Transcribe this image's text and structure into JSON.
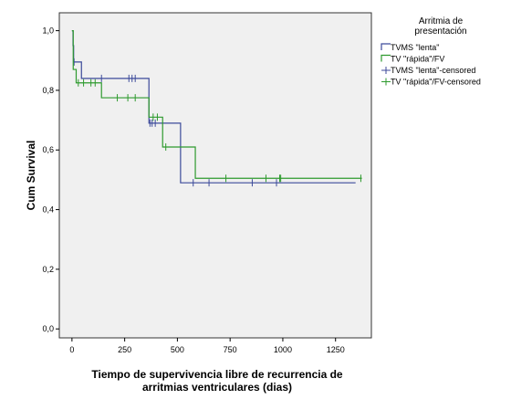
{
  "chart_data": {
    "type": "line",
    "subtype": "kaplan-meier",
    "title": "",
    "xlabel_lines": [
      "Tiempo de supervivencia libre de recurrencia de",
      "arritmias ventriculares (dias)"
    ],
    "ylabel": "Cum Survival",
    "xlim": [
      -60,
      1420
    ],
    "ylim": [
      -0.03,
      1.06
    ],
    "x_ticks": [
      0,
      250,
      500,
      750,
      1000,
      1250
    ],
    "x_tick_labels": [
      "0",
      "250",
      "500",
      "750",
      "1000",
      "1250"
    ],
    "y_ticks": [
      0.0,
      0.2,
      0.4,
      0.6,
      0.8,
      1.0
    ],
    "y_tick_labels": [
      "0,0",
      "0,2",
      "0,4",
      "0,6",
      "0,8",
      "1,0"
    ],
    "grid": false,
    "plot_background": "#f0f0f0",
    "legend_title_lines": [
      "Arritmia de",
      "presentación"
    ],
    "legend_position": "right",
    "series": [
      {
        "name": "TVMS \"lenta\"",
        "color": "#3c4a9a",
        "steps": [
          [
            0,
            1.0
          ],
          [
            5,
            0.95
          ],
          [
            8,
            0.895
          ],
          [
            45,
            0.84
          ],
          [
            365,
            0.69
          ],
          [
            515,
            0.49
          ],
          [
            1345,
            0.49
          ]
        ],
        "censored": [
          [
            10,
            0.895
          ],
          [
            140,
            0.84
          ],
          [
            270,
            0.84
          ],
          [
            285,
            0.84
          ],
          [
            300,
            0.84
          ],
          [
            370,
            0.69
          ],
          [
            380,
            0.69
          ],
          [
            395,
            0.69
          ],
          [
            575,
            0.49
          ],
          [
            650,
            0.49
          ],
          [
            855,
            0.49
          ],
          [
            970,
            0.49
          ]
        ]
      },
      {
        "name": "TV \"rápida\"/FV",
        "color": "#2e9a2e",
        "steps": [
          [
            0,
            1.0
          ],
          [
            6,
            0.87
          ],
          [
            20,
            0.825
          ],
          [
            140,
            0.775
          ],
          [
            365,
            0.71
          ],
          [
            430,
            0.61
          ],
          [
            585,
            0.505
          ],
          [
            1375,
            0.505
          ]
        ],
        "censored": [
          [
            30,
            0.825
          ],
          [
            55,
            0.825
          ],
          [
            90,
            0.825
          ],
          [
            110,
            0.825
          ],
          [
            215,
            0.775
          ],
          [
            265,
            0.775
          ],
          [
            300,
            0.775
          ],
          [
            385,
            0.71
          ],
          [
            405,
            0.71
          ],
          [
            445,
            0.61
          ],
          [
            730,
            0.505
          ],
          [
            920,
            0.505
          ],
          [
            985,
            0.505
          ],
          [
            990,
            0.505
          ],
          [
            1370,
            0.505
          ]
        ]
      }
    ],
    "legend_entries": [
      {
        "label": "TVMS \"lenta\"",
        "color": "#3c4a9a",
        "kind": "line"
      },
      {
        "label": "TV \"rápida\"/FV",
        "color": "#2e9a2e",
        "kind": "line"
      },
      {
        "label": "TVMS \"lenta\"-censored",
        "color": "#3c4a9a",
        "kind": "censored"
      },
      {
        "label": "TV \"rápida\"/FV-censored",
        "color": "#2e9a2e",
        "kind": "censored"
      }
    ]
  }
}
